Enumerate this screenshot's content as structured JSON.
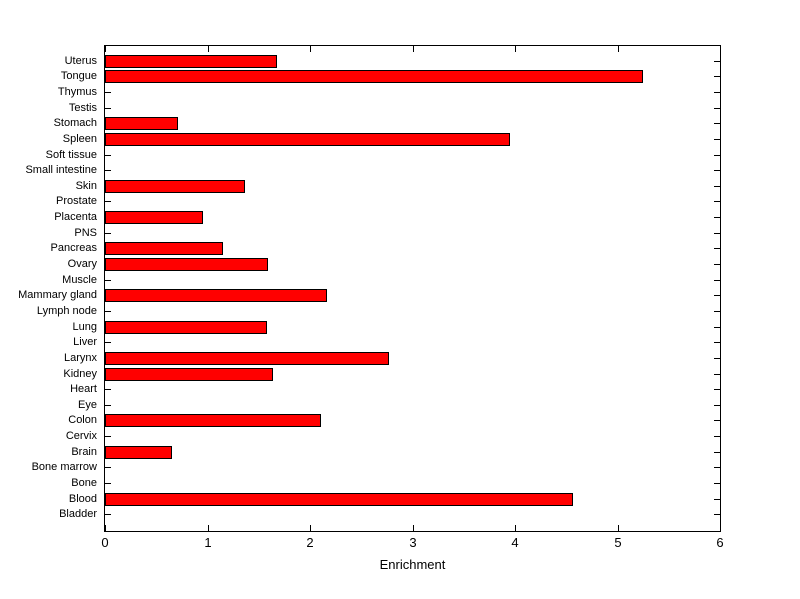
{
  "chart_data": {
    "type": "bar",
    "orientation": "horizontal",
    "title": "",
    "xlabel": "Enrichment",
    "ylabel": "",
    "xlim": [
      0,
      6
    ],
    "xticks": [
      0,
      1,
      2,
      3,
      4,
      5,
      6
    ],
    "grid": false,
    "bar_color": "#ff0000",
    "bar_edge_color": "#000000",
    "axis_color": "#000000",
    "background_color": "#ffffff",
    "categories": [
      "Uterus",
      "Tongue",
      "Thymus",
      "Testis",
      "Stomach",
      "Spleen",
      "Soft tissue",
      "Small intestine",
      "Skin",
      "Prostate",
      "Placenta",
      "PNS",
      "Pancreas",
      "Ovary",
      "Muscle",
      "Mammary gland",
      "Lymph node",
      "Lung",
      "Liver",
      "Larynx",
      "Kidney",
      "Heart",
      "Eye",
      "Colon",
      "Cervix",
      "Brain",
      "Bone marrow",
      "Bone",
      "Blood",
      "Bladder"
    ],
    "values": [
      1.68,
      5.25,
      0,
      0,
      0.71,
      3.95,
      0,
      0,
      1.37,
      0,
      0.96,
      0,
      1.15,
      1.59,
      0,
      2.17,
      0,
      1.58,
      0,
      2.77,
      1.64,
      0,
      0,
      2.11,
      0,
      0.65,
      0,
      0,
      4.57,
      0
    ]
  }
}
